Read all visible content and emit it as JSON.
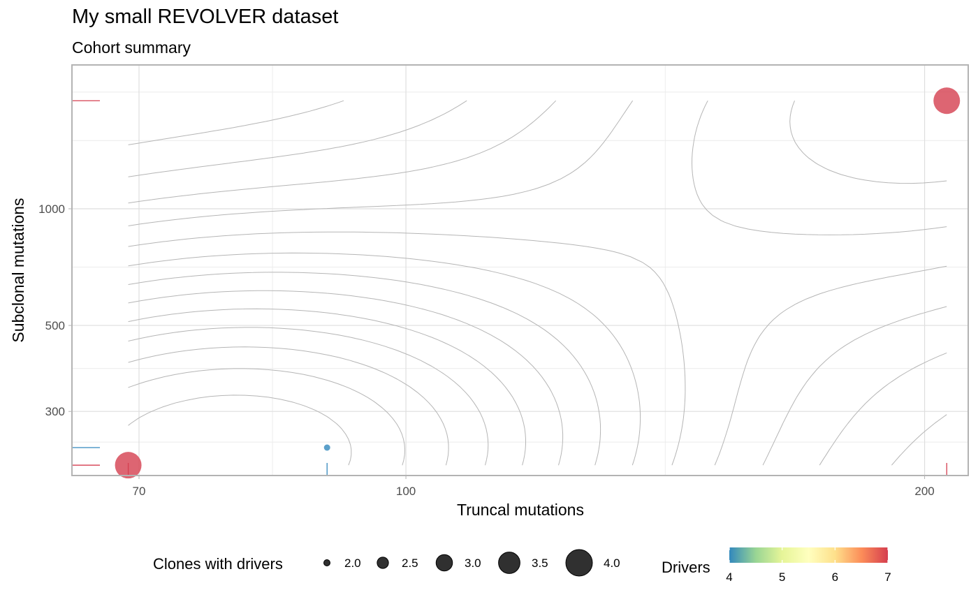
{
  "chart_data": {
    "type": "scatter",
    "title": "My small REVOLVER dataset",
    "subtitle": "Cohort summary",
    "xlabel": "Truncal mutations",
    "ylabel": "Subclonal mutations",
    "x_scale": "log10",
    "y_scale": "log10",
    "xlim": [
      64,
      212
    ],
    "ylim": [
      205,
      2350
    ],
    "x_ticks": [
      70,
      100,
      200
    ],
    "y_ticks": [
      300,
      500,
      1000
    ],
    "grid": true,
    "density_contours": true,
    "rug": true,
    "points": [
      {
        "x": 69,
        "y": 218,
        "clones_with_drivers": 4,
        "drivers": 7
      },
      {
        "x": 90,
        "y": 242,
        "clones_with_drivers": 2,
        "drivers": 4
      },
      {
        "x": 206,
        "y": 1900,
        "clones_with_drivers": 4,
        "drivers": 7
      }
    ],
    "size_legend": {
      "title": "Clones with drivers",
      "values": [
        2.0,
        2.5,
        3.0,
        3.5,
        4.0
      ],
      "labels": [
        "2.0",
        "2.5",
        "3.0",
        "3.5",
        "4.0"
      ]
    },
    "color_legend": {
      "title": "Drivers",
      "min": 4,
      "max": 7,
      "labels": [
        "4",
        "5",
        "6",
        "7"
      ],
      "gradient": [
        "#3288bd",
        "#99d594",
        "#e6f598",
        "#ffffbf",
        "#fee08b",
        "#fc8d59",
        "#d53e4f"
      ],
      "legend_position": "bottom"
    }
  }
}
